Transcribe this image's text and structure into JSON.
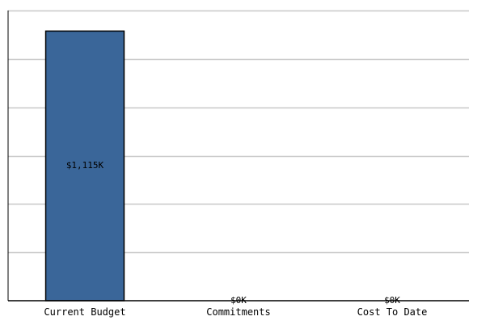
{
  "chart_data": {
    "type": "bar",
    "categories": [
      "Current Budget",
      "Commitments",
      "Cost To Date"
    ],
    "values": [
      1115,
      0,
      0
    ],
    "data_labels": [
      "$1,115K",
      "$0K",
      "$0K"
    ],
    "title": "",
    "xlabel": "",
    "ylabel": "",
    "ylim": [
      0,
      1200
    ],
    "y_ticks": [
      0,
      200,
      400,
      600,
      800,
      1000,
      1200
    ],
    "y_tick_labels_visible": false,
    "grid": true,
    "legend": "none",
    "colors": {
      "bar_fill": "#3a6699",
      "bar_stroke": "#000000",
      "grid": "#c8c8c8",
      "axis": "#000000",
      "label": "#000000"
    }
  }
}
